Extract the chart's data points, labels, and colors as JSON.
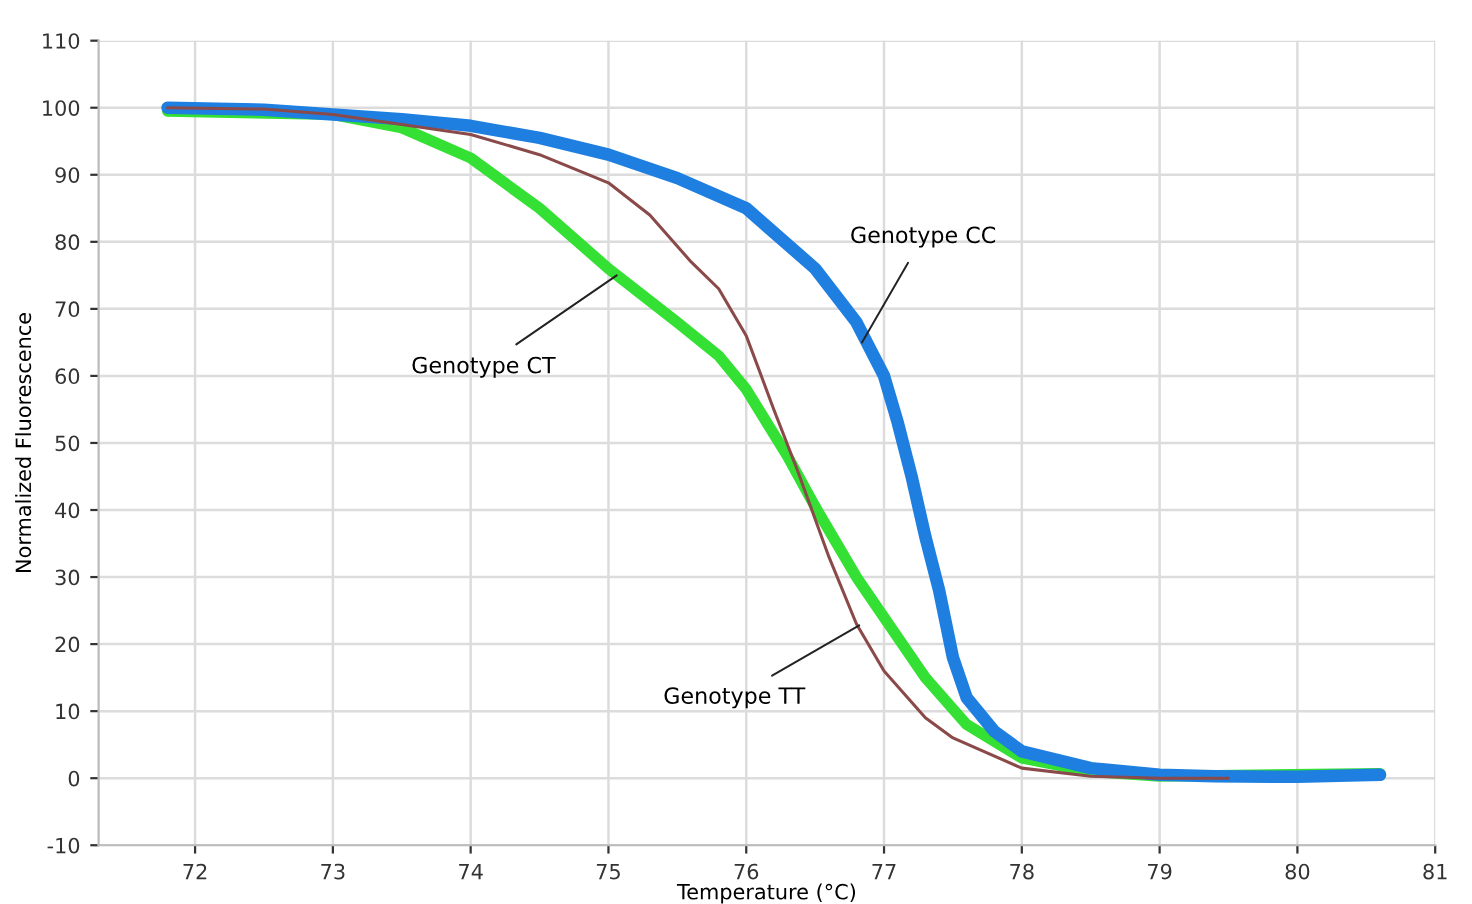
{
  "chart_data": {
    "type": "line",
    "xlabel": "Temperature (°C)",
    "ylabel": "Normalized Fluorescence",
    "xlim": [
      71.3,
      81
    ],
    "xticks": [
      72,
      73,
      74,
      75,
      76,
      77,
      78,
      79,
      80,
      81
    ],
    "ylim": [
      -10,
      110
    ],
    "yticks": [
      -10,
      0,
      10,
      20,
      30,
      40,
      50,
      60,
      70,
      80,
      90,
      100,
      110
    ],
    "grid": true,
    "marker": "none",
    "line_style": "solid",
    "series": [
      {
        "color": "#1e7fe0",
        "x": [
          71.8,
          72.5,
          73,
          73.5,
          74,
          74.5,
          75,
          75.5,
          76,
          76.5,
          76.8,
          77,
          77.1,
          77.2,
          77.3,
          77.4,
          77.5,
          77.6,
          77.8,
          78,
          78.5,
          79,
          79.4,
          80,
          80.6
        ],
        "values": [
          100,
          99.7,
          99,
          98.3,
          97.3,
          95.5,
          93,
          89.5,
          85,
          76,
          68,
          60,
          53,
          45,
          36,
          28,
          18,
          12,
          7,
          4,
          1.5,
          0.5,
          0.3,
          0.2,
          0.5
        ]
      },
      {
        "color": "#33e033",
        "x": [
          71.8,
          73,
          73.5,
          74,
          74.5,
          75,
          75.5,
          75.8,
          76,
          76.3,
          76.5,
          76.8,
          77,
          77.3,
          77.6,
          78,
          78.5,
          79,
          80.6
        ],
        "values": [
          99.5,
          99,
          97,
          92.5,
          85,
          76,
          68,
          63,
          58,
          48,
          40.5,
          30,
          24,
          15,
          8,
          3,
          1,
          0.3,
          0.7
        ]
      },
      {
        "color": "#8b4a4a",
        "x": [
          71.8,
          72.5,
          73,
          74,
          74.5,
          75,
          75.3,
          75.6,
          75.8,
          76,
          76.2,
          76.37,
          76.6,
          76.8,
          77,
          77.3,
          77.5,
          78,
          78.5,
          79,
          79.5
        ],
        "values": [
          100,
          99.8,
          99,
          96,
          93,
          88.8,
          84,
          77,
          73,
          66,
          55,
          46,
          33,
          23,
          16,
          9,
          6,
          1.5,
          0.3,
          0,
          0
        ]
      }
    ],
    "annotations": [
      {
        "text": "Genotype CC",
        "x": 76.84,
        "y": 65
      },
      {
        "text": "Genotype CT",
        "x": 75.06,
        "y": 75
      },
      {
        "text": "Genotype TT",
        "x": 76.82,
        "y": 22.8
      }
    ]
  }
}
